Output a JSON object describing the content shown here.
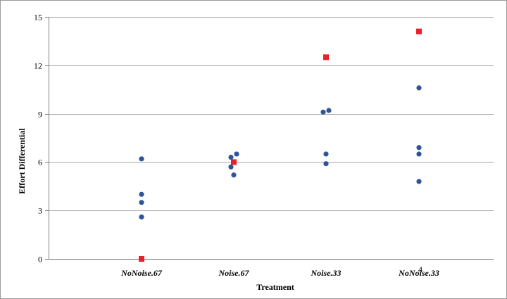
{
  "chart_data": {
    "type": "scatter",
    "xlabel": "Treatment",
    "ylabel": "Effort Differential",
    "categories": [
      "NoNoise.67",
      "Noise.67",
      "Noise.33",
      "NoNoise.33"
    ],
    "ylim": [
      0,
      15
    ],
    "yticks": [
      0,
      3,
      6,
      9,
      12,
      15
    ],
    "grid": true,
    "legend": "none",
    "stray_label": "4",
    "series": [
      {
        "color": "#2e5597",
        "marker": "circle",
        "points": [
          {
            "category": "NoNoise.67",
            "y": 6.2
          },
          {
            "category": "NoNoise.67",
            "y": 4.0
          },
          {
            "category": "NoNoise.67",
            "y": 3.5
          },
          {
            "category": "NoNoise.67",
            "y": 2.6
          },
          {
            "category": "Noise.67",
            "y": 6.5
          },
          {
            "category": "Noise.67",
            "y": 6.3
          },
          {
            "category": "Noise.67",
            "y": 5.7
          },
          {
            "category": "Noise.67",
            "y": 5.2
          },
          {
            "category": "Noise.33",
            "y": 9.2
          },
          {
            "category": "Noise.33",
            "y": 9.1
          },
          {
            "category": "Noise.33",
            "y": 6.5
          },
          {
            "category": "Noise.33",
            "y": 5.9
          },
          {
            "category": "NoNoise.33",
            "y": 10.6
          },
          {
            "category": "NoNoise.33",
            "y": 6.9
          },
          {
            "category": "NoNoise.33",
            "y": 6.5
          },
          {
            "category": "NoNoise.33",
            "y": 4.8
          }
        ]
      },
      {
        "color": "#e8202a",
        "marker": "square",
        "points": [
          {
            "category": "NoNoise.67",
            "y": 0.0
          },
          {
            "category": "Noise.67",
            "y": 6.0
          },
          {
            "category": "Noise.33",
            "y": 12.5
          },
          {
            "category": "NoNoise.33",
            "y": 14.1
          }
        ]
      }
    ]
  }
}
